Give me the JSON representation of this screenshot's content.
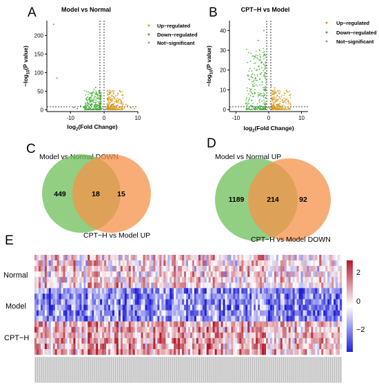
{
  "panels": {
    "A": {
      "letter": "A",
      "title": "Model vs Normal",
      "xlabel_base": "log",
      "xlabel_sub": "2",
      "xlabel_rest": "(Fold Change)",
      "ylabel_pre": "−log",
      "ylabel_sub": "10",
      "ylabel_rest": "(P value)",
      "xticks": [
        "-10",
        "0",
        "10"
      ],
      "yticks": [
        "0",
        "50",
        "100",
        "150",
        "200"
      ],
      "legend": [
        "Up−regulated",
        "Down−regulated",
        "Not−significant"
      ]
    },
    "B": {
      "letter": "B",
      "title": "CPT−H vs Model",
      "xlabel_base": "log",
      "xlabel_sub": "2",
      "xlabel_rest": "(Fold Change)",
      "ylabel_pre": "−log",
      "ylabel_sub": "10",
      "ylabel_rest": "(P value)",
      "xticks": [
        "-10",
        "0",
        "10"
      ],
      "yticks": [
        "0",
        "10",
        "20",
        "30",
        "40"
      ],
      "legend": [
        "Up−regulated",
        "Down−regulated",
        "Not−significant"
      ]
    },
    "C": {
      "letter": "C",
      "set_left": "Model vs Normal DOWN",
      "set_right": "CPT−H vs Model UP",
      "left_only": "449",
      "overlap": "18",
      "right_only": "15"
    },
    "D": {
      "letter": "D",
      "set_left": "Model vs Normal UP",
      "set_right": "CPT−H vs Model DOWN",
      "left_only": "1189",
      "overlap": "214",
      "right_only": "92"
    },
    "E": {
      "letter": "E",
      "rows": [
        "Normal",
        "Model",
        "CPT−H"
      ],
      "scale_ticks": [
        "2",
        "0",
        "−2"
      ]
    }
  },
  "colors": {
    "up": "#d99a1c",
    "down": "#3fae2f",
    "ns": "#9e9e9e",
    "venn_left": "#6dbf5a",
    "venn_right": "#f5914a",
    "heat_high": "#b2182b",
    "heat_mid": "#ffffff",
    "heat_low": "#2020d8"
  },
  "chart_data": [
    {
      "type": "scatter",
      "title": "Model vs Normal",
      "xlabel": "log2(Fold Change)",
      "ylabel": "−log10(P value)",
      "xlim": [
        -17,
        10
      ],
      "ylim": [
        -5,
        240
      ],
      "series": [
        {
          "name": "Up−regulated",
          "points": [
            [
              1.5,
              5
            ],
            [
              2,
              10
            ],
            [
              2.5,
              15
            ],
            [
              3,
              8
            ],
            [
              3.5,
              22
            ],
            [
              4,
              12
            ],
            [
              4.5,
              6
            ],
            [
              5,
              18
            ],
            [
              5.5,
              9
            ],
            [
              6,
              4
            ],
            [
              7,
              11
            ],
            [
              8,
              5
            ],
            [
              2.2,
              28
            ],
            [
              3.2,
              30
            ],
            [
              1.8,
              20
            ],
            [
              2.8,
              35
            ],
            [
              4.2,
              25
            ],
            [
              6.5,
              14
            ],
            [
              9,
              3
            ]
          ]
        },
        {
          "name": "Down−regulated",
          "points": [
            [
              -1.5,
              6
            ],
            [
              -2,
              12
            ],
            [
              -2.5,
              18
            ],
            [
              -3,
              9
            ],
            [
              -3.5,
              25
            ],
            [
              -4,
              14
            ],
            [
              -4.5,
              7
            ],
            [
              -5,
              20
            ],
            [
              -6,
              5
            ],
            [
              -7,
              10
            ],
            [
              -8,
              3
            ],
            [
              -2,
              40
            ],
            [
              -3,
              55
            ],
            [
              -2.5,
              60
            ],
            [
              -1.8,
              30
            ],
            [
              -4,
              33
            ],
            [
              -5.5,
              12
            ],
            [
              -14,
              85
            ],
            [
              -15,
              230
            ],
            [
              -9,
              6
            ]
          ]
        },
        {
          "name": "Not−significant",
          "points": [
            [
              -0.5,
              2
            ],
            [
              0.2,
              1
            ],
            [
              0.6,
              3
            ],
            [
              -0.8,
              1.5
            ],
            [
              0.4,
              0.5
            ],
            [
              -0.2,
              2.5
            ]
          ]
        }
      ]
    },
    {
      "type": "scatter",
      "title": "CPT−H vs Model",
      "xlabel": "log2(Fold Change)",
      "ylabel": "−log10(P value)",
      "xlim": [
        -12,
        12
      ],
      "ylim": [
        -1,
        45
      ],
      "series": [
        {
          "name": "Up−regulated",
          "points": [
            [
              0.5,
              3
            ],
            [
              1,
              6
            ],
            [
              1.2,
              2
            ],
            [
              1.5,
              8
            ],
            [
              2,
              4
            ],
            [
              2.5,
              5
            ],
            [
              3,
              2
            ],
            [
              1.8,
              11
            ],
            [
              0.8,
              12
            ],
            [
              1.3,
              9
            ]
          ]
        },
        {
          "name": "Down−regulated",
          "points": [
            [
              -1,
              6
            ],
            [
              -1.5,
              10
            ],
            [
              -2,
              14
            ],
            [
              -2.5,
              18
            ],
            [
              -3,
              22
            ],
            [
              -3.5,
              26
            ],
            [
              -2.8,
              30
            ],
            [
              -3.2,
              35
            ],
            [
              -1.5,
              40
            ],
            [
              -4,
              16
            ],
            [
              -4.5,
              12
            ],
            [
              -5,
              8
            ],
            [
              -6,
              5
            ],
            [
              -7,
              3
            ],
            [
              -2.2,
              24
            ],
            [
              -3.8,
              20
            ],
            [
              -1.2,
              28
            ],
            [
              -0.8,
              15
            ],
            [
              -5.5,
              10
            ]
          ]
        },
        {
          "name": "Not−significant",
          "points": [
            [
              -0.3,
              1
            ],
            [
              0.2,
              0.5
            ],
            [
              -0.5,
              1.2
            ],
            [
              0.4,
              1.1
            ]
          ]
        }
      ]
    }
  ]
}
